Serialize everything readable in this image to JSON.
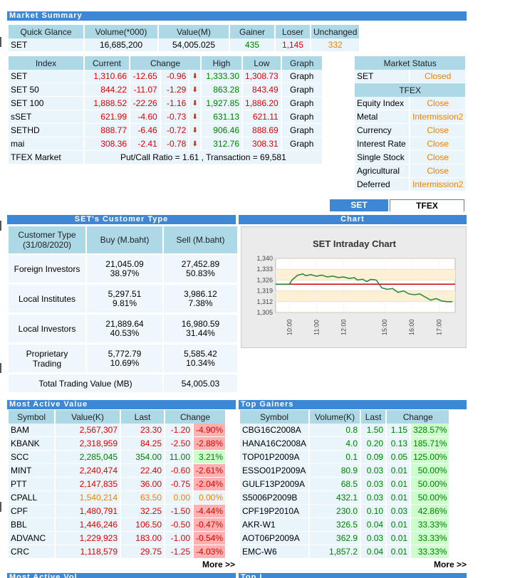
{
  "titles": {
    "market_summary": "Market Summary",
    "customer_type": "SET's Customer Type",
    "chart": "Chart",
    "most_active": "Most Active Value",
    "top_gainers": "Top Gainers",
    "bottom_left": "Most Active Vol",
    "bottom_right": "Top L"
  },
  "quick_glance": {
    "headers": [
      "Quick Glance",
      "Volume(*000)",
      "Value(M)",
      "Gainer",
      "Loser",
      "Unchanged"
    ],
    "row": [
      "SET",
      "16,685,200",
      "54,005.025",
      "435",
      "1,145",
      "332"
    ]
  },
  "index": {
    "headers": [
      "Index",
      "Current",
      "Change",
      "High",
      "Low",
      "Graph"
    ],
    "rows": [
      [
        "SET",
        "1,310.66",
        "-12.65",
        "-0.96",
        "1,333.30",
        "1,308.73",
        "Graph"
      ],
      [
        "SET 50",
        "844.22",
        "-11.07",
        "-1.29",
        "863.28",
        "843.49",
        "Graph"
      ],
      [
        "SET 100",
        "1,888.52",
        "-22.26",
        "-1.16",
        "1,927.85",
        "1,886.20",
        "Graph"
      ],
      [
        "sSET",
        "621.99",
        "-4.60",
        "-0.73",
        "631.13",
        "621.11",
        "Graph"
      ],
      [
        "SETHD",
        "888.77",
        "-6.46",
        "-0.72",
        "906.46",
        "888.69",
        "Graph"
      ],
      [
        "mai",
        "308.36",
        "-2.41",
        "-0.78",
        "312.76",
        "308.31",
        "Graph"
      ]
    ],
    "tfex_label": "TFEX Market",
    "tfex_text": "Put/Call Ratio = 1.61 , Transaction = 69,581"
  },
  "market_status": {
    "header": "Market Status",
    "set_label": "SET",
    "set_status": "Closed",
    "tfex_header": "TFEX",
    "rows": [
      [
        "Equity Index",
        "Close"
      ],
      [
        "Metal",
        "Intermission2"
      ],
      [
        "Currency",
        "Close"
      ],
      [
        "Interest Rate",
        "Close"
      ],
      [
        "Single Stock",
        "Close"
      ],
      [
        "Agricultural",
        "Close"
      ],
      [
        "Deferred",
        "Intermission2"
      ]
    ]
  },
  "tabs": {
    "set": "SET",
    "tfex": "TFEX"
  },
  "customer": {
    "headers": [
      "Customer Type (31/08/2020)",
      "Buy (M.baht)",
      "Sell (M.baht)"
    ],
    "rows": [
      {
        "name": "Foreign Investors",
        "buy": "21,045.09",
        "buy_pct": "38.97%",
        "sell": "27,452.89",
        "sell_pct": "50.83%"
      },
      {
        "name": "Local Institutes",
        "buy": "5,297.51",
        "buy_pct": "9.81%",
        "sell": "3,986.12",
        "sell_pct": "7.38%"
      },
      {
        "name": "Local Investors",
        "buy": "21,889.64",
        "buy_pct": "40.53%",
        "sell": "16,980.59",
        "sell_pct": "31.44%"
      },
      {
        "name": "Proprietary Trading",
        "buy": "5,772.79",
        "buy_pct": "10.69%",
        "sell": "5,585.42",
        "sell_pct": "10.34%"
      }
    ],
    "total_label": "Total Trading Value (MB)",
    "total": "54,005.03"
  },
  "chart_data": {
    "type": "line",
    "title": "SET Intraday Chart",
    "yticks": [
      "1,340",
      "1,333",
      "1,326",
      "1,319",
      "1,312",
      "1,305"
    ],
    "ylim": [
      1305,
      1340
    ],
    "xticks": [
      "10:00",
      "11:00",
      "12:00",
      "15:00",
      "16:00",
      "17:00"
    ],
    "reference": 1323.31,
    "colors": {
      "line": "#2e8b3a",
      "ref": "#cc0000",
      "band": "#fdf0d5"
    },
    "series": [
      {
        "x": [
          0,
          0.5,
          0.6,
          0.8,
          1,
          1.1,
          1.3,
          1.5,
          1.7,
          1.9,
          2.1,
          2.3,
          2.5,
          2.7,
          2.9,
          3.0,
          3.2,
          3.35,
          3.5,
          3.7,
          3.9,
          4.1,
          4.3,
          4.5,
          4.7,
          4.9,
          5.1,
          5.3,
          5.5,
          5.7,
          5.9,
          6.1,
          6.3,
          6.5
        ],
        "y": [
          1323.2,
          1323.2,
          1326,
          1329,
          1330,
          1328.8,
          1329.5,
          1328.5,
          1329.2,
          1328,
          1328.6,
          1327.6,
          1328,
          1327,
          1327.5,
          1326,
          1326.5,
          1325,
          1326.4,
          1326,
          1321,
          1320,
          1320.5,
          1318,
          1319,
          1317,
          1316.5,
          1317,
          1315,
          1313,
          1314,
          1312.5,
          1312,
          1312
        ]
      }
    ]
  },
  "most_active": {
    "headers": [
      "Symbol",
      "Value(K)",
      "Last",
      "Change"
    ],
    "rows": [
      [
        "BAM",
        "2,567,307",
        "23.30",
        "-1.20",
        "-4.90%",
        "red"
      ],
      [
        "KBANK",
        "2,318,959",
        "84.25",
        "-2.50",
        "-2.88%",
        "red"
      ],
      [
        "SCC",
        "2,285,045",
        "354.00",
        "11.00",
        "3.21%",
        "grn"
      ],
      [
        "MINT",
        "2,240,474",
        "22.40",
        "-0.60",
        "-2.61%",
        "red"
      ],
      [
        "PTT",
        "2,147,835",
        "36.00",
        "-0.75",
        "-2.04%",
        "red"
      ],
      [
        "CPALL",
        "1,540,214",
        "63.50",
        "0.00",
        "0.00%",
        "org"
      ],
      [
        "CPF",
        "1,480,791",
        "32.25",
        "-1.50",
        "-4.44%",
        "red"
      ],
      [
        "BBL",
        "1,446,246",
        "106.50",
        "-0.50",
        "-0.47%",
        "red"
      ],
      [
        "ADVANC",
        "1,229,923",
        "183.00",
        "-1.00",
        "-0.54%",
        "red"
      ],
      [
        "CRC",
        "1,118,579",
        "29.75",
        "-1.25",
        "-4.03%",
        "red"
      ]
    ],
    "more": "More >>"
  },
  "top_gainers": {
    "headers": [
      "Symbol",
      "Volume(K)",
      "Last",
      "Change"
    ],
    "rows": [
      [
        "CBG16C2008A",
        "0.8",
        "1.50",
        "1.15",
        "328.57%"
      ],
      [
        "HANA16C2008A",
        "4.0",
        "0.20",
        "0.13",
        "185.71%"
      ],
      [
        "TOP01P2009A",
        "0.1",
        "0.09",
        "0.05",
        "125.00%"
      ],
      [
        "ESSO01P2009A",
        "80.9",
        "0.03",
        "0.01",
        "50.00%"
      ],
      [
        "GULF13P2009A",
        "68.5",
        "0.03",
        "0.01",
        "50.00%"
      ],
      [
        "S5006P2009B",
        "432.1",
        "0.03",
        "0.01",
        "50.00%"
      ],
      [
        "CPF19P2010A",
        "230.0",
        "0.10",
        "0.03",
        "42.86%"
      ],
      [
        "AKR-W1",
        "326.5",
        "0.04",
        "0.01",
        "33.33%"
      ],
      [
        "AOT06P2009A",
        "362.9",
        "0.03",
        "0.01",
        "33.33%"
      ],
      [
        "EMC-W6",
        "1,857.2",
        "0.04",
        "0.01",
        "33.33%"
      ]
    ],
    "more": "More >>"
  }
}
